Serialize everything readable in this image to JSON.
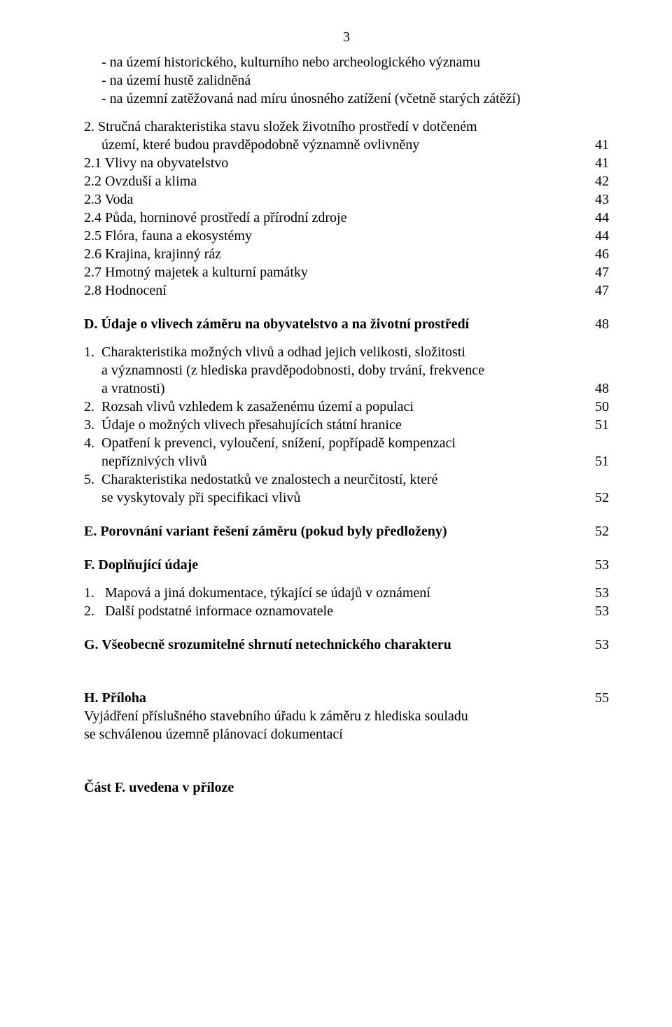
{
  "page_number": "3",
  "top_items": [
    {
      "text": "- na území historického, kulturního nebo archeologického významu",
      "page": ""
    },
    {
      "text": "- na území  hustě zalidněná",
      "page": ""
    },
    {
      "text": "- na územní zatěžovaná nad míru únosného zatížení (včetně starých zátěží)",
      "page": ""
    }
  ],
  "sec2": {
    "lead1": "2. Stručná charakteristika stavu složek životního prostředí v dotčeném",
    "lead2_label": "území, které budou pravděpodobně významně ovlivněny",
    "lead2_page": "41",
    "items": [
      {
        "text": "2.1 Vlivy na obyvatelstvo",
        "page": "41"
      },
      {
        "text": "2.2 Ovzduší a klima",
        "page": "42"
      },
      {
        "text": "2.3 Voda",
        "page": "43"
      },
      {
        "text": "2.4 Půda, horninové prostředí a přírodní zdroje",
        "page": "44"
      },
      {
        "text": "2.5 Flóra, fauna a ekosystémy",
        "page": "44"
      },
      {
        "text": "2.6 Krajina, krajinný ráz",
        "page": "46"
      },
      {
        "text": "2.7 Hmotný majetek a kulturní památky",
        "page": "47"
      },
      {
        "text": "2.8 Hodnocení",
        "page": "47"
      }
    ]
  },
  "secD": {
    "title": "D. Údaje o vlivech záměru na obyvatelstvo a na životní prostředí",
    "page": "48",
    "items": [
      {
        "n": "1.",
        "lines": [
          "Charakteristika možných vlivů a odhad jejich velikosti, složitosti",
          "a významnosti (z hlediska pravděpodobnosti, doby trvání, frekvence",
          " a vratnosti)"
        ],
        "page": "48"
      },
      {
        "n": "2.",
        "lines": [
          "Rozsah vlivů vzhledem k zasaženému území a populaci"
        ],
        "page": "50"
      },
      {
        "n": "3.",
        "lines": [
          "Údaje o možných vlivech přesahujících státní hranice"
        ],
        "page": "51"
      },
      {
        "n": "4.",
        "lines": [
          "Opatření k prevenci, vyloučení, snížení, popřípadě kompenzaci",
          "nepříznivých vlivů"
        ],
        "page": "51"
      },
      {
        "n": "5.",
        "lines": [
          "Charakteristika nedostatků ve znalostech a neurčitostí, které",
          "se vyskytovaly při specifikaci vlivů"
        ],
        "page": "52"
      }
    ]
  },
  "secE": {
    "title": "E. Porovnání variant řešení záměru (pokud byly předloženy)",
    "page": "52"
  },
  "secF": {
    "title": "F. Doplňující údaje",
    "page": "53",
    "items": [
      {
        "n": "1.",
        "text": "Mapová a jiná dokumentace, týkající se údajů v oznámení",
        "page": "53"
      },
      {
        "n": "2.",
        "text": "Další podstatné informace oznamovatele",
        "page": "53"
      }
    ]
  },
  "secG": {
    "title": "G. Všeobecně srozumitelné shrnutí netechnického charakteru",
    "page": "53"
  },
  "secH": {
    "title": "H. Příloha",
    "page": "55",
    "tail1": "Vyjádření příslušného stavebního úřadu k záměru z hlediska souladu",
    "tail2": "se schválenou územně plánovací dokumentací"
  },
  "footer": "Část F. uvedena v příloze"
}
